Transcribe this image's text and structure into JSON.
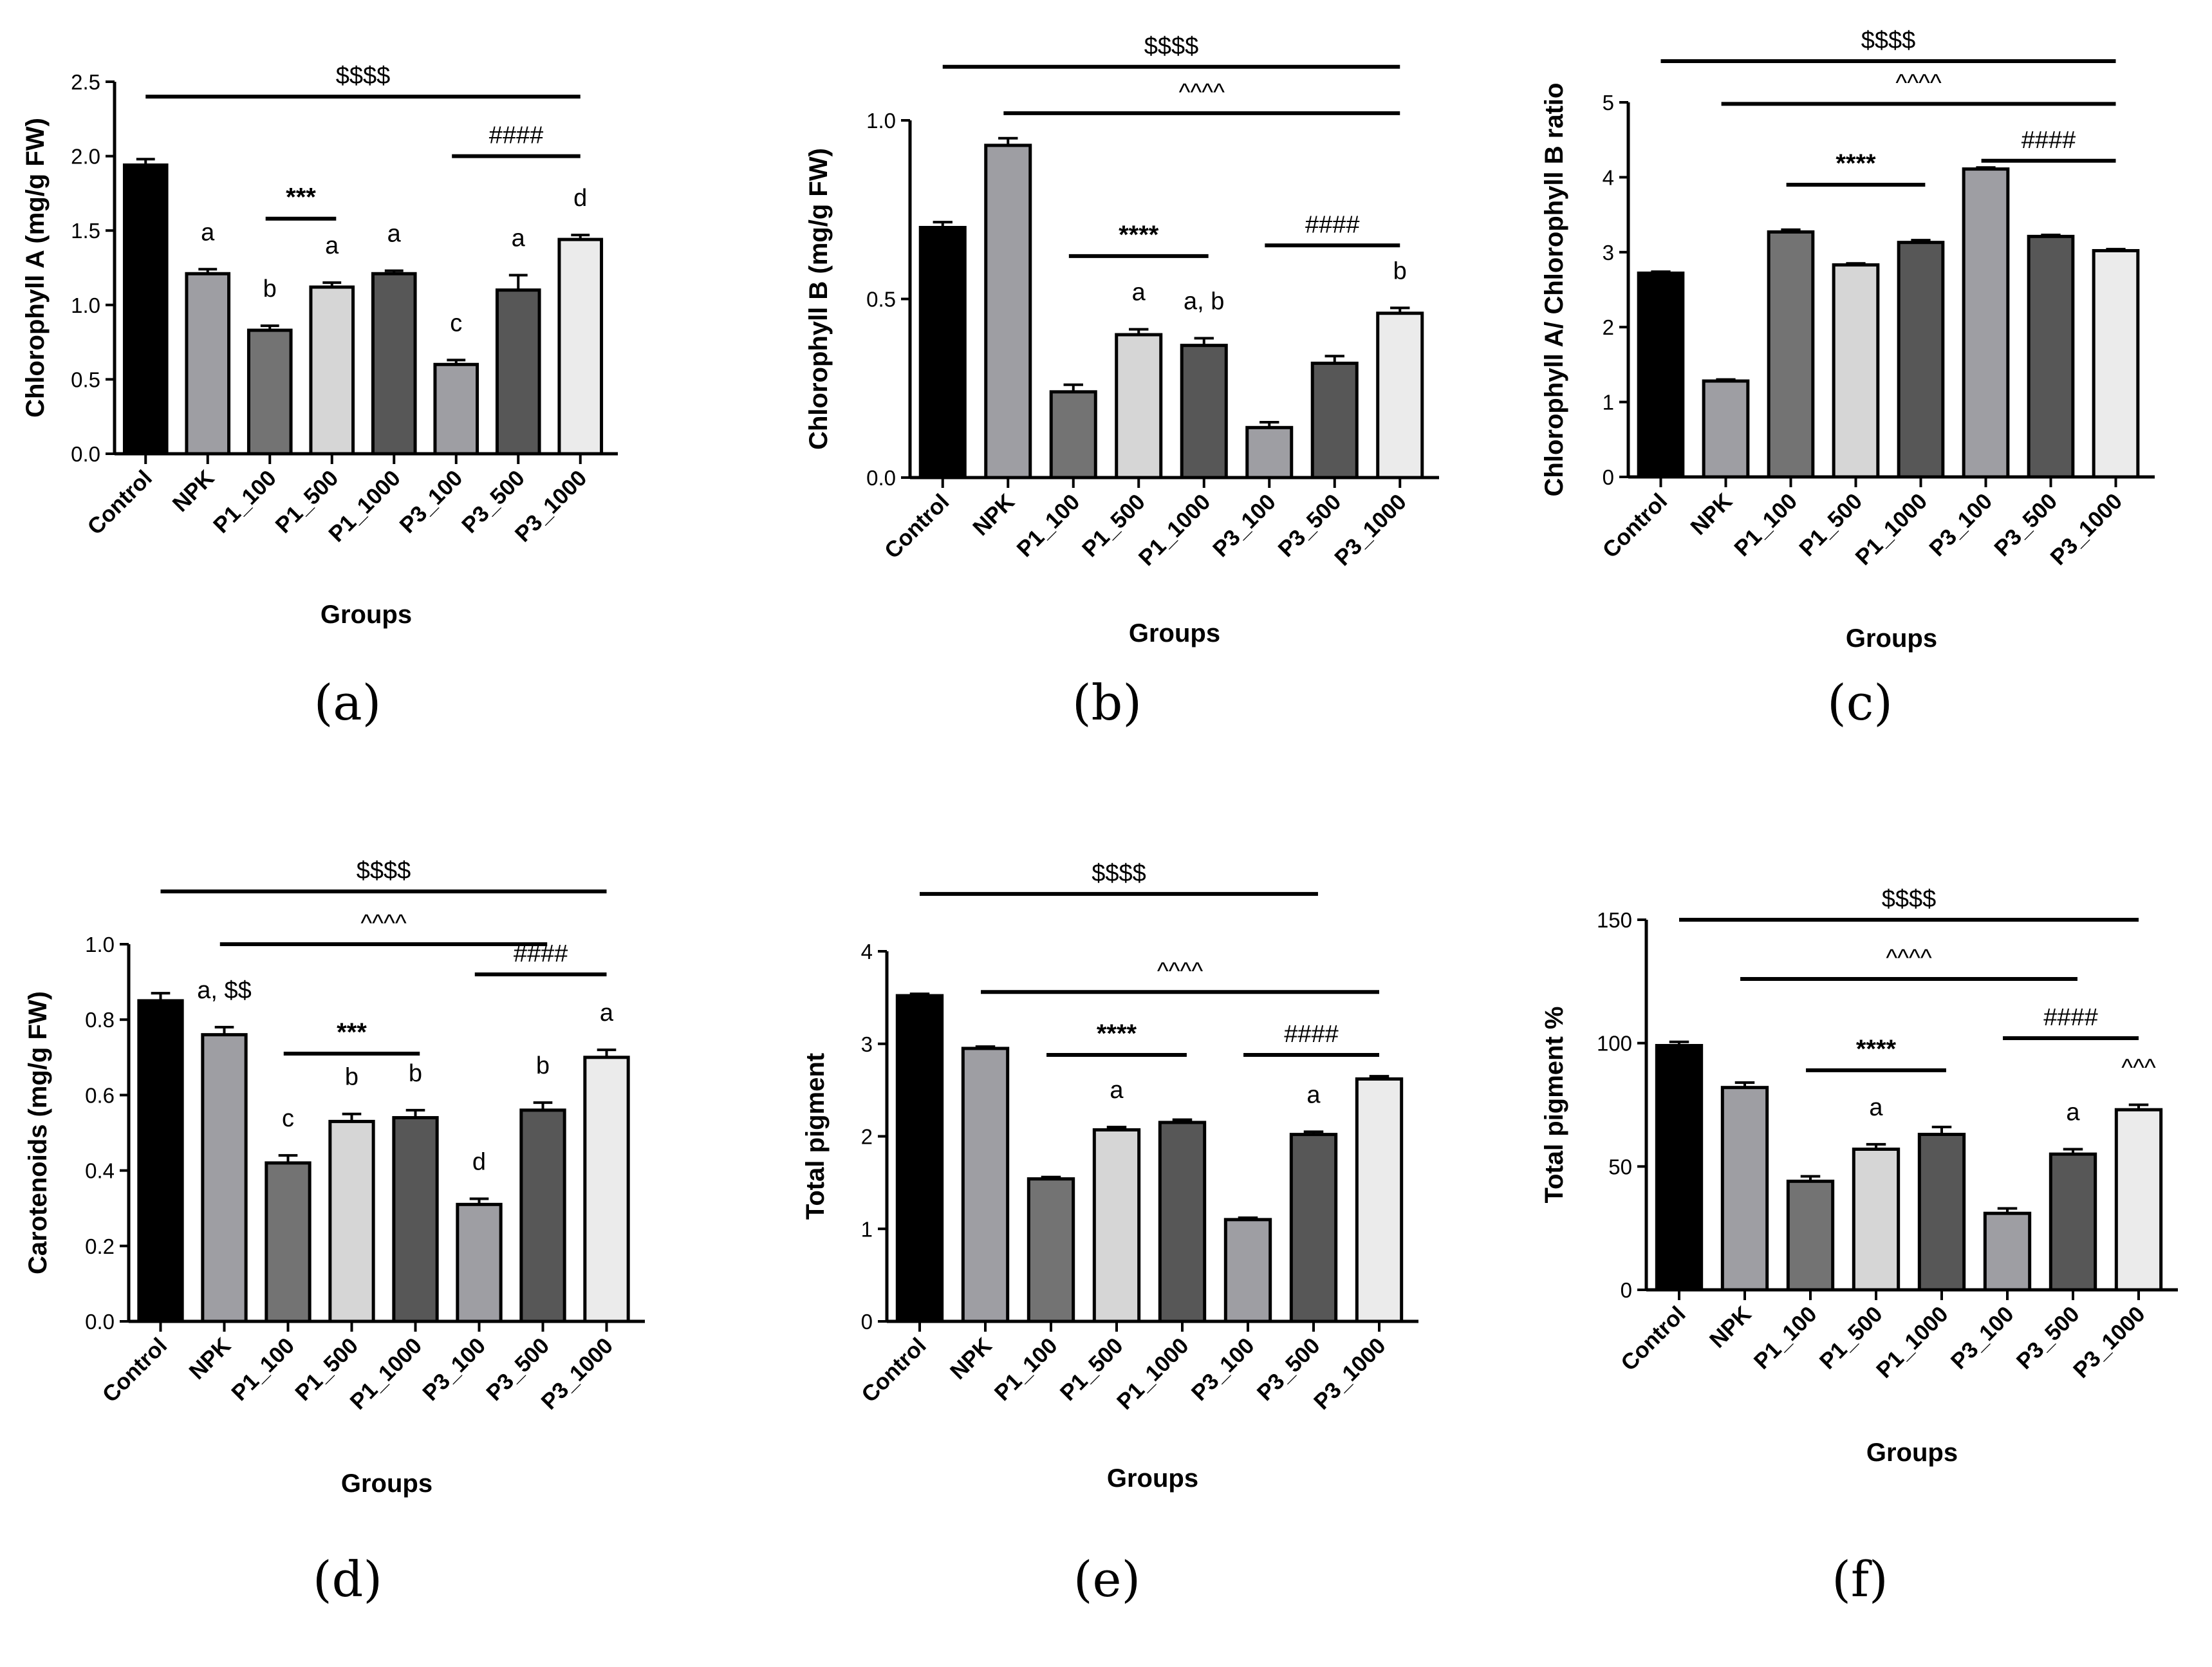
{
  "chart_data": [
    {
      "id": "a",
      "type": "bar",
      "panel_label": "(a)",
      "ylabel": "Chlorophyll A (mg/g FW)",
      "xlabel": "Groups",
      "ylim": [
        0,
        2.5
      ],
      "yticks": [
        0,
        0.5,
        1.0,
        1.5,
        2.0,
        2.5
      ],
      "ytick_labels": [
        "0.0",
        "0.5",
        "1.0",
        "1.5",
        "2.0",
        "2.5"
      ],
      "categories": [
        "Control",
        "NPK",
        "P1_100",
        "P1_500",
        "P1_1000",
        "P3_100",
        "P3_500",
        "P3_1000"
      ],
      "values": [
        1.94,
        1.21,
        0.83,
        1.12,
        1.21,
        0.6,
        1.1,
        1.44
      ],
      "errors": [
        0.04,
        0.03,
        0.03,
        0.03,
        0.02,
        0.03,
        0.1,
        0.03
      ],
      "bar_colors": [
        "#000000",
        "#9e9ea3",
        "#737373",
        "#d6d6d6",
        "#575757",
        "#9e9ea3",
        "#575757",
        "#ebebeb"
      ],
      "letters": [
        "",
        "a",
        "b",
        "a",
        "a",
        "c",
        "a",
        "d"
      ],
      "brackets": [
        {
          "label": "$$$$",
          "from": 0,
          "to": 7,
          "y": 2.4,
          "bold": false
        },
        {
          "label": "***",
          "from": 2,
          "to": 3,
          "y": 1.58,
          "bold": true
        },
        {
          "label": "####",
          "from": 5,
          "to": 7,
          "y": 2.0,
          "bold": false
        }
      ]
    },
    {
      "id": "b",
      "type": "bar",
      "panel_label": "(b)",
      "ylabel": "Chlorophyll B (mg/g FW)",
      "xlabel": "Groups",
      "ylim": [
        0,
        1.0
      ],
      "yticks": [
        0,
        0.5,
        1.0
      ],
      "ytick_labels": [
        "0.0",
        "0.5",
        "1.0"
      ],
      "categories": [
        "Control",
        "NPK",
        "P1_100",
        "P1_500",
        "P1_1000",
        "P3_100",
        "P3_500",
        "P3_1000"
      ],
      "values": [
        0.7,
        0.93,
        0.24,
        0.4,
        0.37,
        0.14,
        0.32,
        0.46
      ],
      "errors": [
        0.015,
        0.02,
        0.02,
        0.015,
        0.02,
        0.015,
        0.02,
        0.015
      ],
      "bar_colors": [
        "#000000",
        "#9e9ea3",
        "#737373",
        "#d6d6d6",
        "#575757",
        "#9e9ea3",
        "#575757",
        "#ebebeb"
      ],
      "letters": [
        "",
        "",
        "",
        "a",
        "a, b",
        "",
        "",
        "b"
      ],
      "brackets": [
        {
          "label": "$$$$",
          "from": 0,
          "to": 7,
          "y": 1.15,
          "bold": false
        },
        {
          "label": "^^^^",
          "from": 1,
          "to": 7,
          "y": 1.02,
          "bold": false
        },
        {
          "label": "****",
          "from": 2,
          "to": 4,
          "y": 0.62,
          "bold": true
        },
        {
          "label": "####",
          "from": 5,
          "to": 7,
          "y": 0.65,
          "bold": false
        }
      ]
    },
    {
      "id": "c",
      "type": "bar",
      "panel_label": "(c)",
      "ylabel": "Chlorophyll A/ Chlorophyll B ratio",
      "xlabel": "Groups",
      "ylim": [
        0,
        5
      ],
      "yticks": [
        0,
        1,
        2,
        3,
        4,
        5
      ],
      "ytick_labels": [
        "0",
        "1",
        "2",
        "3",
        "4",
        "5"
      ],
      "categories": [
        "Control",
        "NPK",
        "P1_100",
        "P1_500",
        "P1_1000",
        "P3_100",
        "P3_500",
        "P3_1000"
      ],
      "values": [
        2.72,
        1.28,
        3.27,
        2.83,
        3.13,
        4.11,
        3.21,
        3.02
      ],
      "errors": [
        0.02,
        0.02,
        0.03,
        0.02,
        0.03,
        0.02,
        0.02,
        0.02
      ],
      "bar_colors": [
        "#000000",
        "#9e9ea3",
        "#737373",
        "#d6d6d6",
        "#575757",
        "#9e9ea3",
        "#575757",
        "#ebebeb"
      ],
      "letters": [
        "",
        "",
        "",
        "",
        "",
        "",
        "",
        ""
      ],
      "brackets": [
        {
          "label": "$$$$",
          "from": 0,
          "to": 7,
          "y": 5.55,
          "bold": false
        },
        {
          "label": "^^^^",
          "from": 1,
          "to": 7,
          "y": 4.98,
          "bold": false
        },
        {
          "label": "****",
          "from": 2,
          "to": 4,
          "y": 3.9,
          "bold": true
        },
        {
          "label": "####",
          "from": 5,
          "to": 7,
          "y": 4.22,
          "bold": false
        }
      ]
    },
    {
      "id": "d",
      "type": "bar",
      "panel_label": "(d)",
      "ylabel": "Carotenoids (mg/g FW)",
      "xlabel": "Groups",
      "ylim": [
        0,
        1.0
      ],
      "yticks": [
        0,
        0.2,
        0.4,
        0.6,
        0.8,
        1.0
      ],
      "ytick_labels": [
        "0.0",
        "0.2",
        "0.4",
        "0.6",
        "0.8",
        "1.0"
      ],
      "categories": [
        "Control",
        "NPK",
        "P1_100",
        "P1_500",
        "P1_1000",
        "P3_100",
        "P3_500",
        "P3_1000"
      ],
      "values": [
        0.85,
        0.76,
        0.42,
        0.53,
        0.54,
        0.31,
        0.56,
        0.7
      ],
      "errors": [
        0.02,
        0.02,
        0.02,
        0.02,
        0.02,
        0.015,
        0.02,
        0.02
      ],
      "bar_colors": [
        "#000000",
        "#9e9ea3",
        "#737373",
        "#d6d6d6",
        "#575757",
        "#9e9ea3",
        "#575757",
        "#ebebeb"
      ],
      "letters": [
        "",
        "a, $$",
        "c",
        "b",
        "b",
        "d",
        "b",
        "a"
      ],
      "brackets": [
        {
          "label": "$$$$",
          "from": 0,
          "to": 7,
          "y": 1.14,
          "bold": false
        },
        {
          "label": "^^^^",
          "from": 1,
          "to": 6,
          "y": 1.0,
          "bold": false
        },
        {
          "label": "***",
          "from": 2,
          "to": 4,
          "y": 0.71,
          "bold": true
        },
        {
          "label": "####",
          "from": 5,
          "to": 7,
          "y": 0.92,
          "bold": false
        }
      ]
    },
    {
      "id": "e",
      "type": "bar",
      "panel_label": "(e)",
      "ylabel": "Total pigment",
      "xlabel": "Groups",
      "ylim": [
        0,
        4
      ],
      "yticks": [
        0,
        1,
        2,
        3,
        4
      ],
      "ytick_labels": [
        "0",
        "1",
        "2",
        "3",
        "4"
      ],
      "categories": [
        "Control",
        "NPK",
        "P1_100",
        "P1_500",
        "P1_1000",
        "P3_100",
        "P3_500",
        "P3_1000"
      ],
      "values": [
        3.52,
        2.95,
        1.54,
        2.07,
        2.15,
        1.1,
        2.02,
        2.62
      ],
      "errors": [
        0.02,
        0.02,
        0.02,
        0.03,
        0.03,
        0.02,
        0.03,
        0.03
      ],
      "bar_colors": [
        "#000000",
        "#9e9ea3",
        "#737373",
        "#d6d6d6",
        "#575757",
        "#9e9ea3",
        "#575757",
        "#ebebeb"
      ],
      "letters": [
        "",
        "",
        "",
        "a",
        "",
        "",
        "a",
        ""
      ],
      "brackets": [
        {
          "label": "$$$$",
          "from": 0,
          "to": 6,
          "y": 4.62,
          "bold": false
        },
        {
          "label": "^^^^",
          "from": 1,
          "to": 7,
          "y": 3.56,
          "bold": false
        },
        {
          "label": "****",
          "from": 2,
          "to": 4,
          "y": 2.88,
          "bold": true
        },
        {
          "label": "####",
          "from": 5,
          "to": 7,
          "y": 2.88,
          "bold": false
        }
      ]
    },
    {
      "id": "f",
      "type": "bar",
      "panel_label": "(f)",
      "ylabel": "Total pigment %",
      "xlabel": "Groups",
      "ylim": [
        0,
        150
      ],
      "yticks": [
        0,
        50,
        100,
        150
      ],
      "ytick_labels": [
        "0",
        "50",
        "100",
        "150"
      ],
      "categories": [
        "Control",
        "NPK",
        "P1_100",
        "P1_500",
        "P1_1000",
        "P3_100",
        "P3_500",
        "P3_1000"
      ],
      "values": [
        99,
        82,
        44,
        57,
        63,
        31,
        55,
        73
      ],
      "errors": [
        1.5,
        2.0,
        2.0,
        2.0,
        3.0,
        2.0,
        2.0,
        2.0
      ],
      "bar_colors": [
        "#000000",
        "#9e9ea3",
        "#737373",
        "#d6d6d6",
        "#575757",
        "#9e9ea3",
        "#575757",
        "#ebebeb"
      ],
      "letters": [
        "",
        "",
        "",
        "a",
        "",
        "",
        "a",
        "^^^"
      ],
      "brackets": [
        {
          "label": "$$$$",
          "from": 0,
          "to": 7,
          "y": 150,
          "bold": false
        },
        {
          "label": "^^^^",
          "from": 1,
          "to": 6,
          "y": 126,
          "bold": false
        },
        {
          "label": "****",
          "from": 2,
          "to": 4,
          "y": 89,
          "bold": true
        },
        {
          "label": "####",
          "from": 5,
          "to": 7,
          "y": 102,
          "bold": false
        }
      ]
    }
  ]
}
